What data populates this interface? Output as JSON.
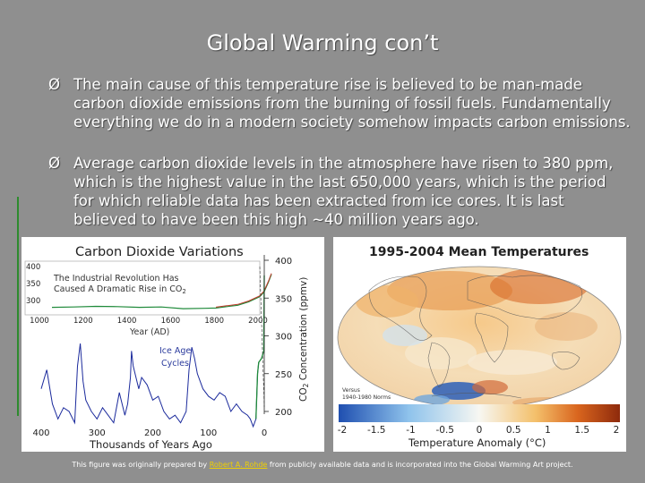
{
  "slide": {
    "title": "Global Warming con’t",
    "bullet_symbol": "Ø",
    "bullets": [
      "The main cause of this temperature rise is believed to be man-made carbon dioxide emissions from the burning of fossil fuels.  Fundamentally everything we do in a modern society somehow impacts carbon emissions.",
      "Average carbon dioxide levels in the atmosphere have risen to 380 ppm, which is the highest value in the last 650,000 years, which is the period for which reliable data has been extracted from ice cores.  It is last believed to have been this high ~40 million years ago."
    ],
    "caption": {
      "before": "This figure was originally prepared by ",
      "link": "Robert A. Rohde",
      "after": " from publicly available data and is incorporated into the Global Warming Art project."
    }
  },
  "chart_data": [
    {
      "type": "line",
      "title": "Carbon Dioxide Variations",
      "xlabel": "Thousands of Years Ago",
      "ylabel": "CO2 Concentration (ppmv)",
      "x_ticks": [
        "400",
        "300",
        "200",
        "100",
        "0"
      ],
      "y_ticks": [
        "400",
        "350",
        "300",
        "250",
        "200"
      ],
      "annotation": "Ice Age Cycles",
      "series": [
        {
          "values_kya_ppm": [
            [
              400,
              230
            ],
            [
              390,
              255
            ],
            [
              380,
              210
            ],
            [
              370,
              190
            ],
            [
              360,
              205
            ],
            [
              350,
              200
            ],
            [
              340,
              185
            ],
            [
              335,
              260
            ],
            [
              330,
              290
            ],
            [
              325,
              240
            ],
            [
              320,
              215
            ],
            [
              310,
              200
            ],
            [
              300,
              190
            ],
            [
              290,
              205
            ],
            [
              280,
              195
            ],
            [
              270,
              185
            ],
            [
              260,
              225
            ],
            [
              250,
              195
            ],
            [
              245,
              210
            ],
            [
              240,
              245
            ],
            [
              238,
              280
            ],
            [
              235,
              260
            ],
            [
              225,
              230
            ],
            [
              220,
              245
            ],
            [
              210,
              235
            ],
            [
              200,
              215
            ],
            [
              190,
              220
            ],
            [
              180,
              200
            ],
            [
              170,
              190
            ],
            [
              160,
              195
            ],
            [
              150,
              185
            ],
            [
              140,
              200
            ],
            [
              135,
              255
            ],
            [
              130,
              285
            ],
            [
              125,
              270
            ],
            [
              120,
              250
            ],
            [
              115,
              240
            ],
            [
              110,
              230
            ],
            [
              100,
              220
            ],
            [
              90,
              215
            ],
            [
              80,
              225
            ],
            [
              70,
              220
            ],
            [
              60,
              200
            ],
            [
              50,
              210
            ],
            [
              40,
              200
            ],
            [
              30,
              195
            ],
            [
              25,
              190
            ],
            [
              20,
              180
            ],
            [
              15,
              190
            ],
            [
              12,
              250
            ],
            [
              10,
              265
            ],
            [
              5,
              270
            ],
            [
              1,
              280
            ],
            [
              0,
              380
            ]
          ]
        }
      ],
      "inset": {
        "title": "The Industrial Revolution Has Caused A Dramatic Rise in CO2",
        "xlabel": "Year (AD)",
        "x_ticks": [
          "1000",
          "1200",
          "1400",
          "1600",
          "1800",
          "2000"
        ],
        "y_ticks": [
          "400",
          "350",
          "300"
        ],
        "series": [
          {
            "values_year_ppm": [
              [
                1000,
                280
              ],
              [
                1100,
                281
              ],
              [
                1200,
                283
              ],
              [
                1300,
                282
              ],
              [
                1400,
                280
              ],
              [
                1500,
                281
              ],
              [
                1600,
                276
              ],
              [
                1700,
                277
              ],
              [
                1750,
                278
              ],
              [
                1800,
                282
              ],
              [
                1850,
                286
              ],
              [
                1900,
                296
              ],
              [
                1950,
                311
              ],
              [
                1970,
                325
              ],
              [
                1990,
                354
              ],
              [
                2004,
                377
              ]
            ]
          }
        ]
      }
    },
    {
      "type": "heatmap",
      "title": "1995-2004 Mean Temperatures",
      "xlabel": "Temperature Anomaly (°C)",
      "colorbar_ticks": [
        "-2",
        "-1.5",
        "-1",
        "-0.5",
        "0",
        "0.5",
        "1",
        "1.5",
        "2"
      ],
      "colorbar_range": [
        -2,
        2
      ],
      "note_line1": "Versus",
      "note_line2": "1940-1980 Norms"
    }
  ]
}
